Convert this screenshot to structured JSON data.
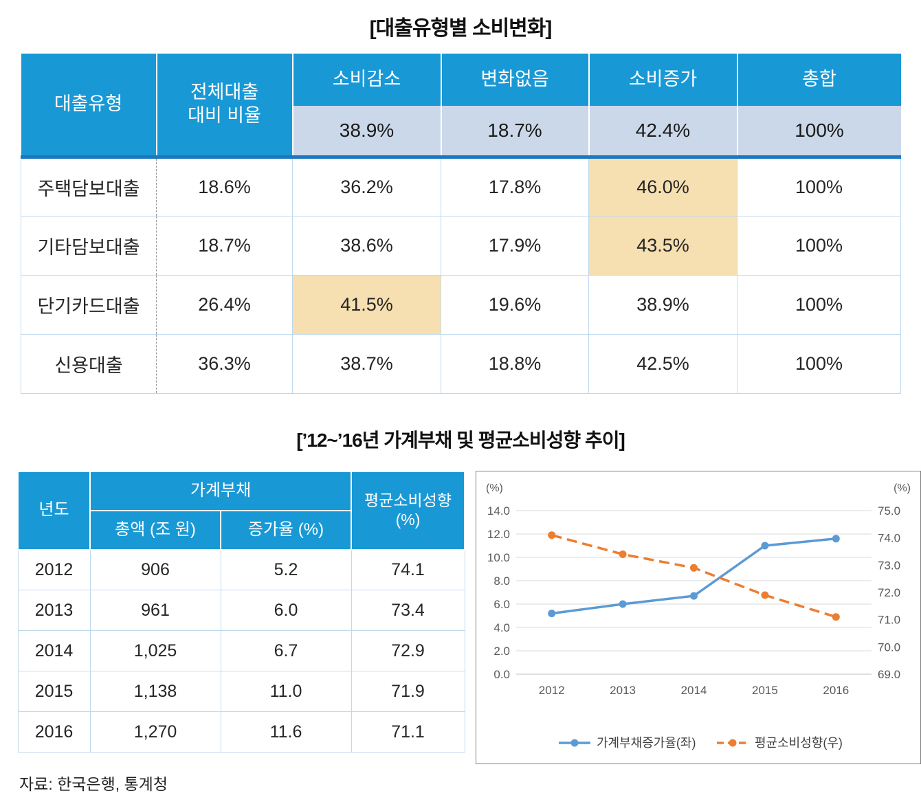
{
  "page": {
    "title_table1": "[대출유형별 소비변화]",
    "title_section2": "[’12~’16년 가계부채 및 평균소비성향 추이]",
    "source": "자료: 한국은행, 통계청"
  },
  "table1": {
    "col_loan_type": "대출유형",
    "col_ratio_lines": [
      "전체대출",
      "대비 비율"
    ],
    "change_cols": [
      "소비감소",
      "변화없음",
      "소비증가",
      "총합"
    ],
    "overall_row": [
      "38.9%",
      "18.7%",
      "42.4%",
      "100%"
    ],
    "rows": [
      {
        "type": "주택담보대출",
        "ratio": "18.6%",
        "values": [
          "36.2%",
          "17.8%",
          "46.0%",
          "100%"
        ],
        "highlight_col": "소비증가"
      },
      {
        "type": "기타담보대출",
        "ratio": "18.7%",
        "values": [
          "38.6%",
          "17.9%",
          "43.5%",
          "100%"
        ],
        "highlight_col": "소비증가"
      },
      {
        "type": "단기카드대출",
        "ratio": "26.4%",
        "values": [
          "41.5%",
          "19.6%",
          "38.9%",
          "100%"
        ],
        "highlight_col": "소비감소"
      },
      {
        "type": "신용대출",
        "ratio": "36.3%",
        "values": [
          "38.7%",
          "18.8%",
          "42.5%",
          "100%"
        ],
        "highlight_col": null
      }
    ]
  },
  "table2": {
    "col_year": "년도",
    "col_debt_group": "가계부채",
    "col_total": "총액 (조 원)",
    "col_growth": "증가율 (%)",
    "col_apc_lines": [
      "평균소비성향",
      "(%)"
    ],
    "rows": [
      [
        "2012",
        "906",
        "5.2",
        "74.1"
      ],
      [
        "2013",
        "961",
        "6.0",
        "73.4"
      ],
      [
        "2014",
        "1,025",
        "6.7",
        "72.9"
      ],
      [
        "2015",
        "1,138",
        "11.0",
        "71.9"
      ],
      [
        "2016",
        "1,270",
        "11.6",
        "71.1"
      ]
    ]
  },
  "chart_data": {
    "type": "line",
    "x": [
      "2012",
      "2013",
      "2014",
      "2015",
      "2016"
    ],
    "series": [
      {
        "name": "가계부채증가율(좌)",
        "axis": "left",
        "values": [
          5.2,
          6.0,
          6.7,
          11.0,
          11.6
        ],
        "color": "#5B9BD5",
        "style": "solid"
      },
      {
        "name": "평균소비성향(우)",
        "axis": "right",
        "values": [
          74.1,
          73.4,
          72.9,
          71.9,
          71.1
        ],
        "color": "#ED7D31",
        "style": "dashed"
      }
    ],
    "left_axis": {
      "label": "(%)",
      "min": 0,
      "max": 14,
      "step": 2
    },
    "right_axis": {
      "label": "(%)",
      "min": 69,
      "max": 75,
      "step": 1
    },
    "grid": true,
    "legend_position": "bottom"
  },
  "colors": {
    "header_blue": "#1899D6",
    "subheader_light_blue": "#CBD8E9",
    "highlight_tan": "#F6DFB0",
    "thick_rule_blue": "#1C77BE",
    "table_border_blue": "#BFD9EC",
    "series_blue": "#5B9BD5",
    "series_orange": "#ED7D31"
  }
}
